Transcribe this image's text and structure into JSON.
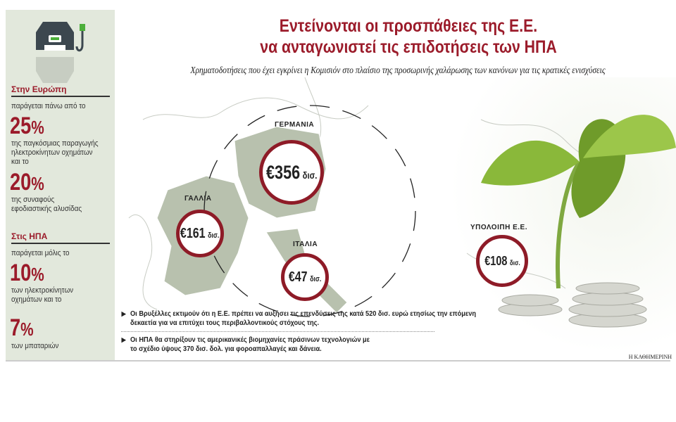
{
  "title_line1": "Εντείνονται οι προσπάθειες της Ε.Ε.",
  "title_line2": "να ανταγωνιστεί τις επιδοτήσεις των ΗΠΑ",
  "subtitle": "Χρηματοδοτήσεις που έχει εγκρίνει η Κομισιόν στο πλαίσιο της προσωρινής χαλάρωσης των κανόνων για τις κρατικές ενισχύσεις",
  "sidebar": {
    "europe": {
      "heading": "Στην Ευρώπη",
      "intro": "παράγεται πάνω από το",
      "stat1": "25",
      "stat1_text": "της παγκόσμιας παραγωγής ηλεκτροκίνητων οχημάτων και το",
      "stat2": "20",
      "stat2_text": "της συναφούς εφοδιαστικής αλυσίδας"
    },
    "usa": {
      "heading": "Στις ΗΠΑ",
      "intro": "παράγεται μόλις το",
      "stat1": "10",
      "stat1_text": "των ηλεκτροκίνητων οχημάτων και το",
      "stat2": "7",
      "stat2_text": "των μπαταριών"
    },
    "percent": "%"
  },
  "countries": [
    {
      "name": "ΓΕΡΜΑΝΙΑ",
      "amount": "€356",
      "unit": "δισ."
    },
    {
      "name": "ΓΑΛΛΙΑ",
      "amount": "€161",
      "unit": "δισ."
    },
    {
      "name": "ΙΤΑΛΙΑ",
      "amount": "€47",
      "unit": "δισ."
    },
    {
      "name": "ΥΠΟΛΟΙΠΗ Ε.Ε.",
      "amount": "€108",
      "unit": "δισ."
    }
  ],
  "notes": [
    "Οι Βρυξέλλες εκτιμούν ότι η Ε.Ε. πρέπει να αυξήσει τις επενδύσεις της κατά 520 δισ. ευρώ ετησίως την επόμενη δεκαετία για να επιτύχει τους περιβαλλοντικούς στόχους της.",
    "Οι ΗΠΑ θα στηρίξουν τις αμερικανικές βιομηχανίες πράσινων τεχνολογιών με το σχέδιο ύψους 370 δισ. δολ. για φοροαπαλλαγές και δάνεια."
  ],
  "credit": "Η ΚΑΘΗΜΕΡΙΝΗ",
  "colors": {
    "accent": "#9b1b2a",
    "sidebar_bg": "#e2e8dc",
    "map_fill": "#b8c1ae"
  }
}
